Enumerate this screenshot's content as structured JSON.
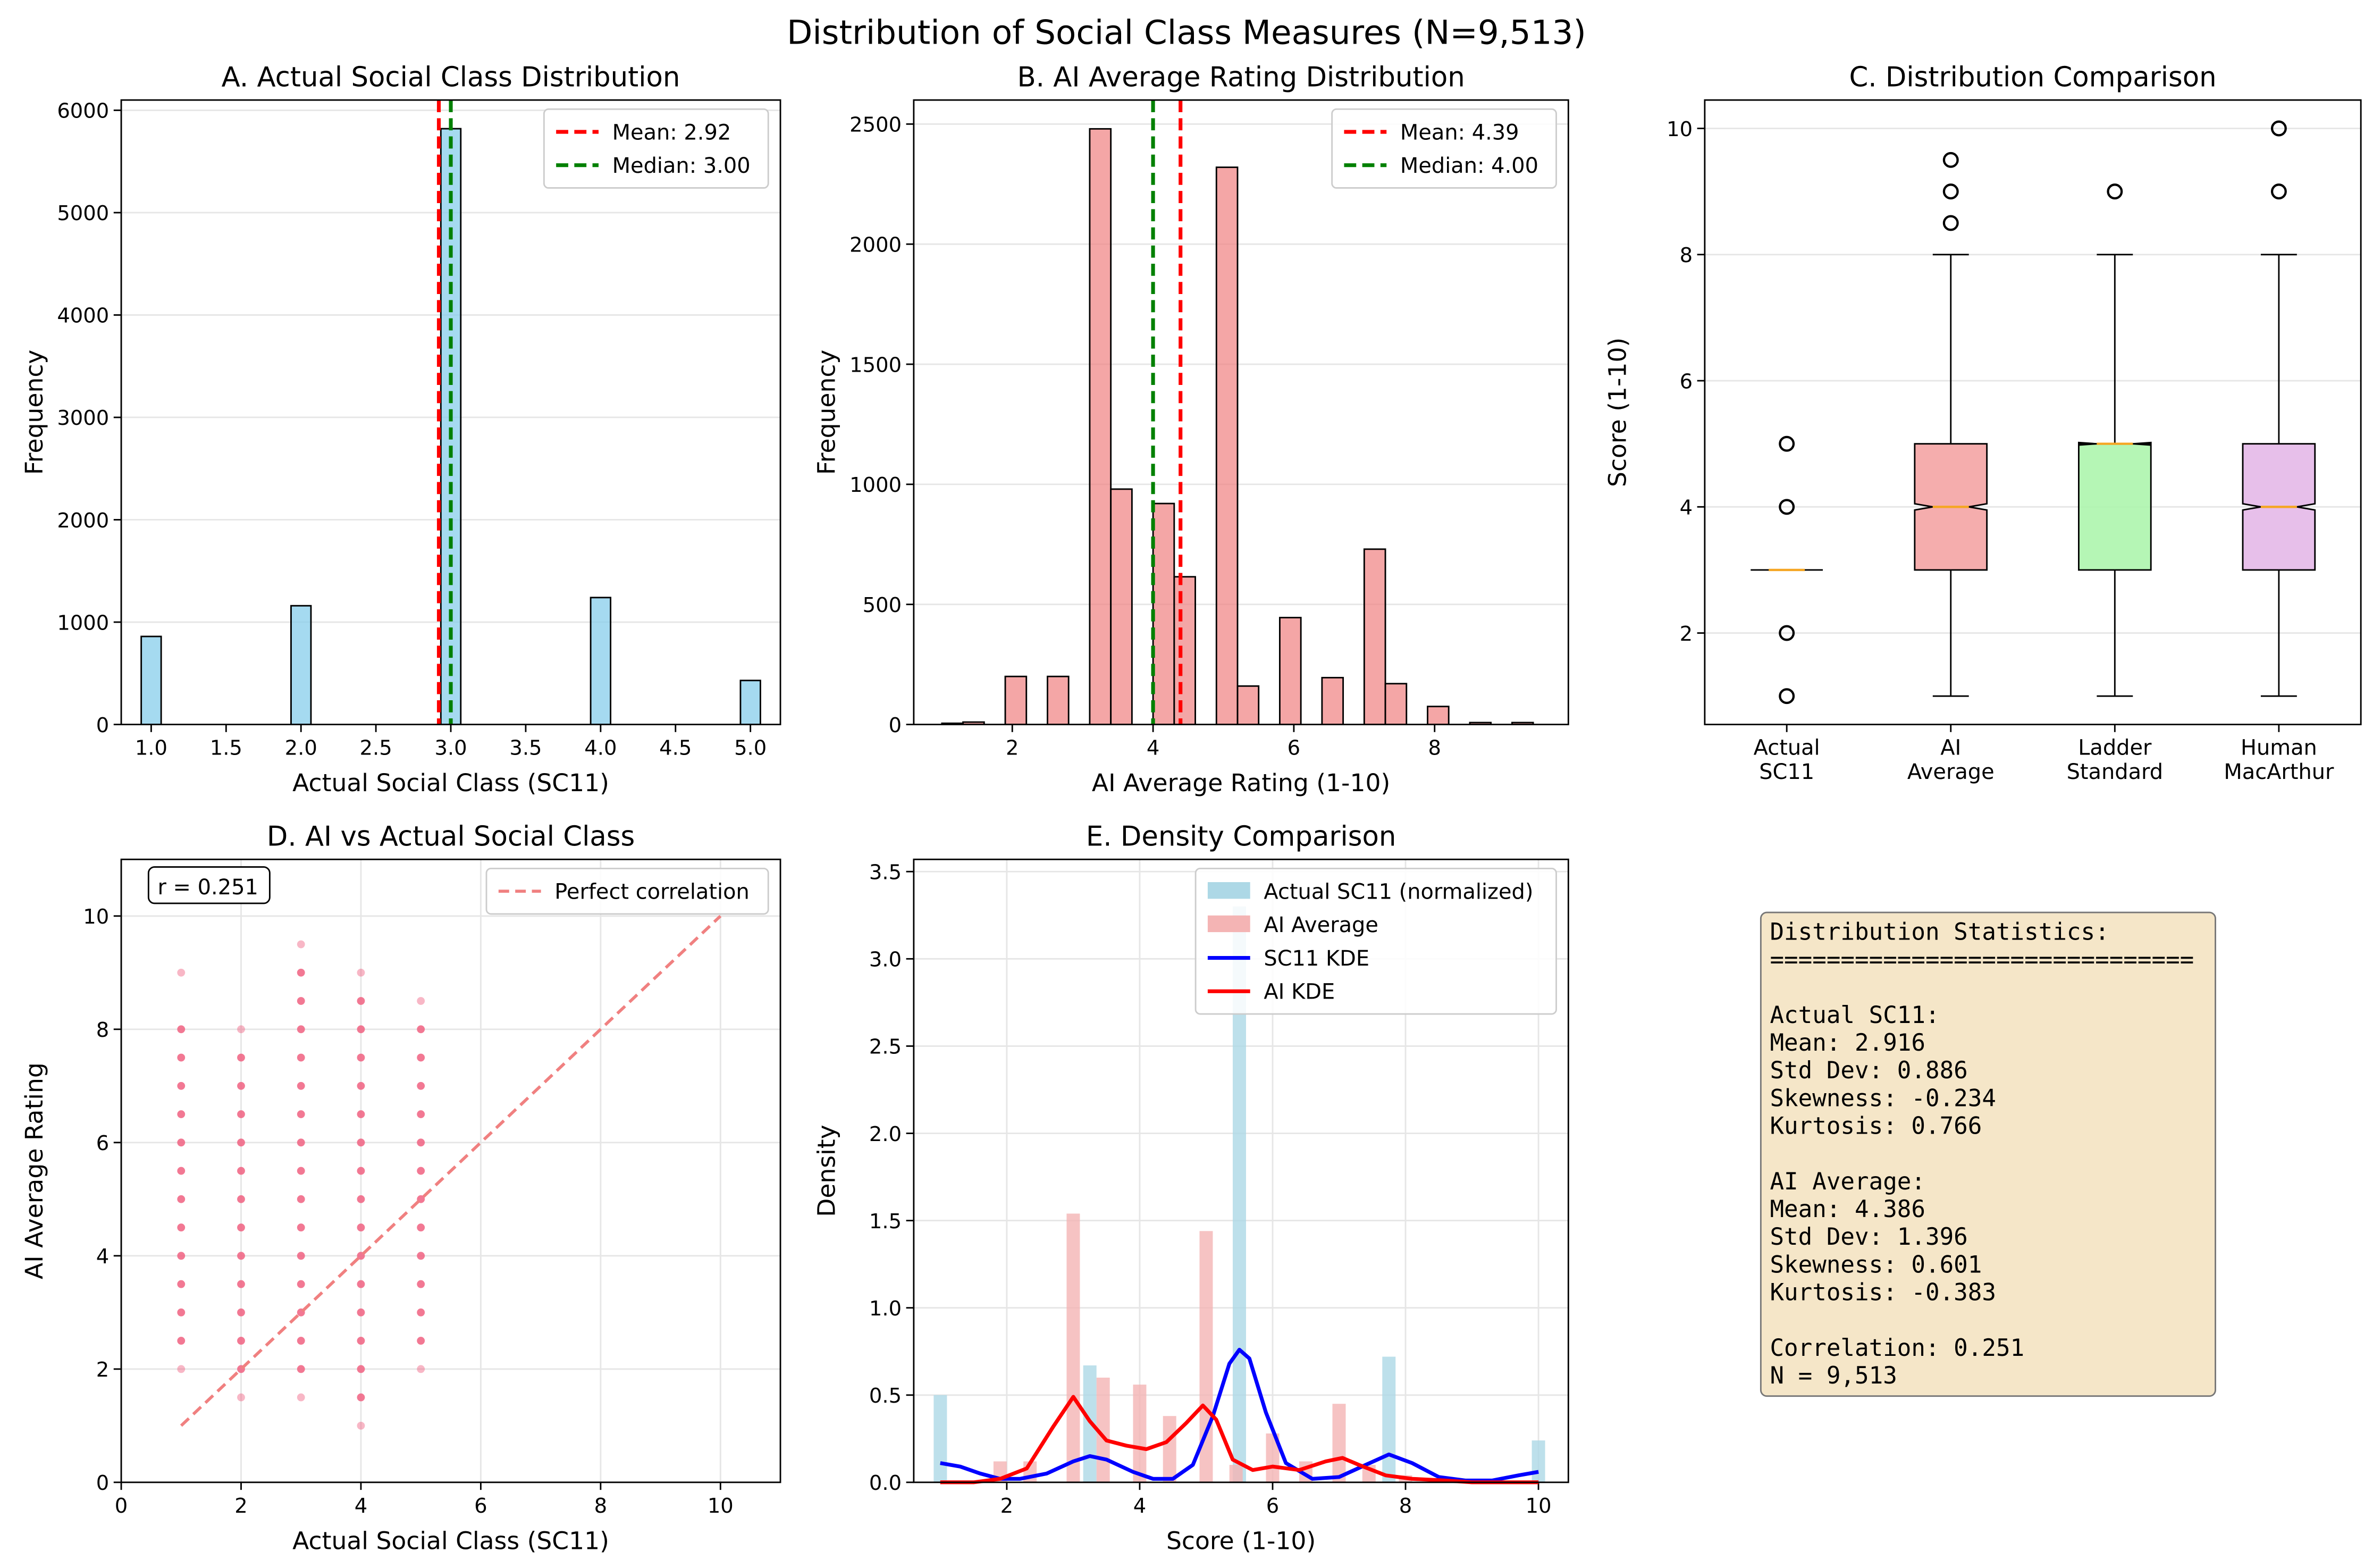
{
  "figure": {
    "title": "Distribution of Social Class Measures (N=9,513)"
  },
  "chart_data": [
    {
      "id": "A",
      "type": "bar",
      "title": "A. Actual Social Class Distribution",
      "xlabel": "Actual Social Class (SC11)",
      "ylabel": "Frequency",
      "xlim": [
        0.8,
        5.2
      ],
      "ylim": [
        0,
        6100
      ],
      "xticks": [
        "1.0",
        "1.5",
        "2.0",
        "2.5",
        "3.0",
        "3.5",
        "4.0",
        "4.5",
        "5.0"
      ],
      "yticks": [
        "0",
        "1000",
        "2000",
        "3000",
        "4000",
        "5000",
        "6000"
      ],
      "grid": true,
      "bar_color": "#87ceeb",
      "bars": [
        {
          "x": 1.0,
          "value": 860
        },
        {
          "x": 2.0,
          "value": 1160
        },
        {
          "x": 3.0,
          "value": 5820
        },
        {
          "x": 4.0,
          "value": 1240
        },
        {
          "x": 5.0,
          "value": 430
        }
      ],
      "bin_width": 0.133,
      "reference_lines": [
        {
          "label": "Mean: 2.92",
          "value": 2.92,
          "color": "#ff0000"
        },
        {
          "label": "Median: 3.00",
          "value": 3.0,
          "color": "#008000"
        }
      ],
      "legend_position": "top-right"
    },
    {
      "id": "B",
      "type": "bar",
      "title": "B. AI Average Rating Distribution",
      "xlabel": "AI Average Rating (1-10)",
      "ylabel": "Frequency",
      "xlim": [
        0.6,
        9.9
      ],
      "ylim": [
        0,
        2600
      ],
      "xticks": [
        "2",
        "4",
        "6",
        "8"
      ],
      "yticks": [
        "0",
        "500",
        "1000",
        "1500",
        "2000",
        "2500"
      ],
      "grid": true,
      "bar_color": "#f08080",
      "bin_width": 0.3,
      "bars": [
        {
          "x": 1.15,
          "value": 5
        },
        {
          "x": 1.45,
          "value": 10
        },
        {
          "x": 2.05,
          "value": 200
        },
        {
          "x": 2.65,
          "value": 200
        },
        {
          "x": 3.25,
          "value": 2480
        },
        {
          "x": 3.55,
          "value": 980
        },
        {
          "x": 4.15,
          "value": 920
        },
        {
          "x": 4.45,
          "value": 615
        },
        {
          "x": 5.05,
          "value": 2320
        },
        {
          "x": 5.35,
          "value": 160
        },
        {
          "x": 5.95,
          "value": 445
        },
        {
          "x": 6.55,
          "value": 195
        },
        {
          "x": 7.15,
          "value": 730
        },
        {
          "x": 7.45,
          "value": 170
        },
        {
          "x": 8.05,
          "value": 75
        },
        {
          "x": 8.65,
          "value": 8
        },
        {
          "x": 9.25,
          "value": 8
        }
      ],
      "reference_lines": [
        {
          "label": "Mean: 4.39",
          "value": 4.39,
          "color": "#ff0000"
        },
        {
          "label": "Median: 4.00",
          "value": 4.0,
          "color": "#008000"
        }
      ],
      "legend_position": "top-right"
    },
    {
      "id": "C",
      "type": "box",
      "title": "C. Distribution Comparison",
      "ylabel": "Score (1-10)",
      "ylim": [
        0.55,
        10.45
      ],
      "yticks": [
        "2",
        "4",
        "6",
        "8",
        "10"
      ],
      "grid": true,
      "boxes": [
        {
          "label": [
            "Actual",
            "SC11"
          ],
          "q1": 3,
          "median": 3,
          "q3": 3,
          "whisker_low": 3,
          "whisker_high": 3,
          "outliers": [
            1,
            2,
            4,
            5
          ],
          "color": "#87ceeb",
          "notch": [
            3,
            3
          ]
        },
        {
          "label": [
            "AI",
            "Average"
          ],
          "q1": 3,
          "median": 4,
          "q3": 5,
          "whisker_low": 1,
          "whisker_high": 8,
          "outliers": [
            8.5,
            9,
            9.5
          ],
          "color": "#f4a4a4",
          "notch": [
            3.95,
            4.05
          ]
        },
        {
          "label": [
            "Ladder",
            "Standard"
          ],
          "q1": 3,
          "median": 5,
          "q3": 5,
          "whisker_low": 1,
          "whisker_high": 8,
          "outliers": [
            9
          ],
          "color": "#adf5ad",
          "notch": [
            4.98,
            5.02
          ]
        },
        {
          "label": [
            "Human",
            "MacArthur"
          ],
          "q1": 3,
          "median": 4,
          "q3": 5,
          "whisker_low": 1,
          "whisker_high": 8,
          "outliers": [
            9,
            10
          ],
          "color": "#e4b8e8",
          "notch": [
            3.95,
            4.05
          ]
        }
      ]
    },
    {
      "id": "D",
      "type": "scatter",
      "title": "D. AI vs Actual Social Class",
      "xlabel": "Actual Social Class (SC11)",
      "ylabel": "AI Average Rating",
      "xlim": [
        0,
        11
      ],
      "ylim": [
        0,
        11
      ],
      "xticks": [
        "0",
        "2",
        "4",
        "6",
        "8",
        "10"
      ],
      "yticks": [
        "0",
        "2",
        "4",
        "6",
        "8",
        "10"
      ],
      "grid": true,
      "annotation": "r = 0.251",
      "point_color": "#f06080",
      "series": [
        {
          "x": 1,
          "y": [
            2,
            2.5,
            3,
            3.5,
            4,
            4.5,
            5,
            5.5,
            6,
            6.5,
            7,
            7.5,
            8,
            9
          ]
        },
        {
          "x": 2,
          "y": [
            1.5,
            2,
            2.5,
            3,
            3.5,
            4,
            4.5,
            5,
            5.5,
            6,
            6.5,
            7,
            7.5,
            8
          ]
        },
        {
          "x": 3,
          "y": [
            1.5,
            2,
            2.5,
            3,
            3.5,
            4,
            4.5,
            5,
            5.5,
            6,
            6.5,
            7,
            7.5,
            8,
            8.5,
            9,
            9.5
          ]
        },
        {
          "x": 4,
          "y": [
            1,
            1.5,
            2,
            2.5,
            3,
            3.5,
            4,
            4.5,
            5,
            5.5,
            6,
            6.5,
            7,
            7.5,
            8,
            8.5,
            9
          ]
        },
        {
          "x": 5,
          "y": [
            2,
            2.5,
            3,
            3.5,
            4,
            4.5,
            5,
            5.5,
            6,
            6.5,
            7,
            7.5,
            8,
            8.5
          ]
        }
      ],
      "reference_line": {
        "label": "Perfect correlation",
        "from": [
          1,
          1
        ],
        "to": [
          10,
          10
        ],
        "color": "#f08080"
      },
      "legend_position": "top-right"
    },
    {
      "id": "E",
      "type": "area",
      "title": "E. Density Comparison",
      "xlabel": "Score (1-10)",
      "ylabel": "Density",
      "xlim": [
        0.6,
        10.45
      ],
      "ylim": [
        0,
        3.57
      ],
      "xticks": [
        "2",
        "4",
        "6",
        "8",
        "10"
      ],
      "yticks": [
        "0.0",
        "0.5",
        "1.0",
        "1.5",
        "2.0",
        "2.5",
        "3.0",
        "3.5"
      ],
      "grid": true,
      "bin_width": 0.2,
      "histograms": [
        {
          "name": "Actual SC11 (normalized)",
          "color": "#add8e6",
          "bars": [
            [
              1.0,
              0.5
            ],
            [
              3.25,
              0.67
            ],
            [
              5.5,
              3.3
            ],
            [
              7.75,
              0.72
            ],
            [
              10.0,
              0.24
            ]
          ]
        },
        {
          "name": "AI Average",
          "color": "#f4b4b4",
          "bars": [
            [
              1.9,
              0.12
            ],
            [
              2.35,
              0.12
            ],
            [
              3.0,
              1.54
            ],
            [
              3.45,
              0.6
            ],
            [
              4.0,
              0.56
            ],
            [
              4.45,
              0.38
            ],
            [
              5.0,
              1.44
            ],
            [
              5.45,
              0.1
            ],
            [
              6.0,
              0.28
            ],
            [
              6.5,
              0.12
            ],
            [
              7.0,
              0.45
            ],
            [
              7.45,
              0.1
            ],
            [
              8.0,
              0.04
            ],
            [
              8.5,
              0.02
            ],
            [
              9.0,
              0.01
            ]
          ]
        }
      ],
      "kde": [
        {
          "name": "SC11 KDE",
          "color": "#0000ff",
          "points": [
            [
              1.0,
              0.11
            ],
            [
              1.3,
              0.09
            ],
            [
              1.6,
              0.05
            ],
            [
              1.9,
              0.02
            ],
            [
              2.2,
              0.02
            ],
            [
              2.6,
              0.05
            ],
            [
              3.0,
              0.12
            ],
            [
              3.25,
              0.15
            ],
            [
              3.5,
              0.13
            ],
            [
              3.9,
              0.06
            ],
            [
              4.2,
              0.02
            ],
            [
              4.5,
              0.02
            ],
            [
              4.8,
              0.1
            ],
            [
              5.1,
              0.38
            ],
            [
              5.35,
              0.68
            ],
            [
              5.5,
              0.76
            ],
            [
              5.65,
              0.71
            ],
            [
              5.9,
              0.4
            ],
            [
              6.2,
              0.11
            ],
            [
              6.6,
              0.02
            ],
            [
              7.0,
              0.03
            ],
            [
              7.4,
              0.1
            ],
            [
              7.75,
              0.16
            ],
            [
              8.1,
              0.11
            ],
            [
              8.5,
              0.03
            ],
            [
              8.9,
              0.01
            ],
            [
              9.3,
              0.01
            ],
            [
              9.7,
              0.04
            ],
            [
              10.0,
              0.06
            ]
          ]
        },
        {
          "name": "AI KDE",
          "color": "#ff0000",
          "points": [
            [
              1.0,
              0.0
            ],
            [
              1.5,
              0.0
            ],
            [
              1.9,
              0.02
            ],
            [
              2.3,
              0.08
            ],
            [
              2.7,
              0.32
            ],
            [
              3.0,
              0.49
            ],
            [
              3.25,
              0.35
            ],
            [
              3.5,
              0.24
            ],
            [
              3.8,
              0.21
            ],
            [
              4.1,
              0.19
            ],
            [
              4.4,
              0.23
            ],
            [
              4.7,
              0.34
            ],
            [
              4.95,
              0.44
            ],
            [
              5.15,
              0.36
            ],
            [
              5.4,
              0.13
            ],
            [
              5.7,
              0.07
            ],
            [
              6.0,
              0.09
            ],
            [
              6.4,
              0.07
            ],
            [
              6.8,
              0.12
            ],
            [
              7.05,
              0.14
            ],
            [
              7.3,
              0.1
            ],
            [
              7.7,
              0.04
            ],
            [
              8.1,
              0.02
            ],
            [
              8.6,
              0.01
            ],
            [
              9.0,
              0.0
            ],
            [
              9.5,
              0.0
            ],
            [
              10.0,
              0.0
            ]
          ]
        }
      ],
      "legend_position": "top-right"
    }
  ],
  "stats_box": {
    "lines": [
      "Distribution Statistics:",
      "==============================",
      "",
      "Actual SC11:",
      "  Mean: 2.916",
      "  Std Dev: 0.886",
      "  Skewness: -0.234",
      "  Kurtosis: 0.766",
      "",
      "AI Average:",
      "  Mean: 4.386",
      "  Std Dev: 1.396",
      "  Skewness: 0.601",
      "  Kurtosis: -0.383",
      "",
      "Correlation: 0.251",
      "N = 9,513"
    ],
    "background": "#f5e6c8"
  }
}
